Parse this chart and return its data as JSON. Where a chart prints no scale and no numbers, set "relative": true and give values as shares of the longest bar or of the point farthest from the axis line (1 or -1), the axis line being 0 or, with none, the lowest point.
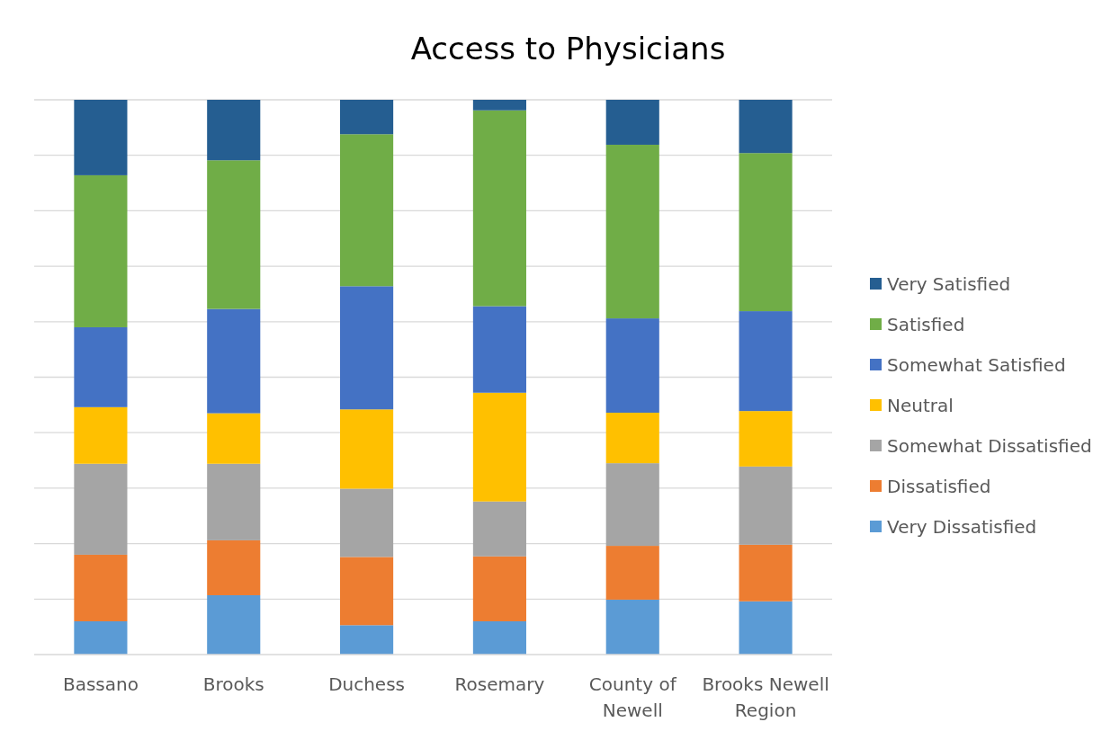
{
  "chart_data": {
    "type": "bar",
    "title": "Access to Physicians",
    "stacked": true,
    "relative": true,
    "grid": true,
    "legend": "right",
    "categories": [
      "Bassano",
      "Brooks",
      "Duchess",
      "Rosemary",
      "County of Newell",
      "Brooks Newell Region"
    ],
    "series": [
      {
        "name": "Very Dissatisfied",
        "color": "#5b9bd5",
        "values": [
          0.06,
          0.107,
          0.053,
          0.06,
          0.099,
          0.096
        ]
      },
      {
        "name": "Dissatisfied",
        "color": "#ed7d31",
        "values": [
          0.12,
          0.099,
          0.123,
          0.117,
          0.097,
          0.102
        ]
      },
      {
        "name": "Somewhat Dissatisfied",
        "color": "#a5a5a5",
        "values": [
          0.164,
          0.138,
          0.123,
          0.099,
          0.149,
          0.141
        ]
      },
      {
        "name": "Neutral",
        "color": "#ffc000",
        "values": [
          0.102,
          0.091,
          0.143,
          0.196,
          0.091,
          0.1
        ]
      },
      {
        "name": "Somewhat Satisfied",
        "color": "#4472c4",
        "values": [
          0.144,
          0.188,
          0.222,
          0.156,
          0.17,
          0.18
        ]
      },
      {
        "name": "Satisfied",
        "color": "#70ad47",
        "values": [
          0.274,
          0.268,
          0.274,
          0.353,
          0.313,
          0.285
        ]
      },
      {
        "name": "Very Satisfied",
        "color": "#255e91",
        "values": [
          0.136,
          0.109,
          0.062,
          0.019,
          0.081,
          0.096
        ]
      }
    ]
  }
}
